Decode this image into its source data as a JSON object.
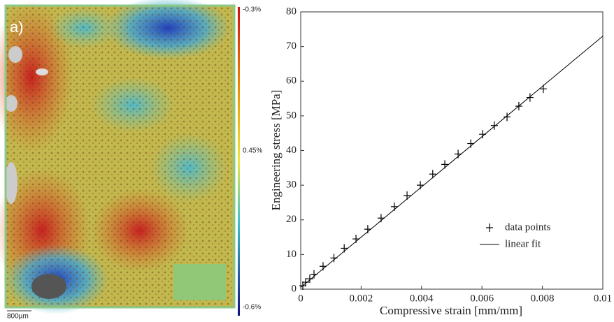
{
  "panel_a": {
    "label": "a)",
    "scale_bar": "800µm",
    "colorbar_labels": [
      "-0.3%",
      "0.45%",
      "-0.6%"
    ]
  },
  "chart_data": {
    "type": "scatter",
    "x_label": "Compressive strain [mm/mm]",
    "y_label": "Engineering stress [MPa]",
    "xlim": [
      0,
      0.01
    ],
    "xticks": [
      0,
      0.002,
      0.004,
      0.006,
      0.008,
      0.01
    ],
    "ylim": [
      0,
      80
    ],
    "yticks": [
      0,
      10,
      20,
      30,
      40,
      50,
      60,
      70,
      80
    ],
    "legend": "lower right",
    "series": [
      {
        "name": "data points",
        "color": "#000000",
        "marker": "+",
        "x": [
          7e-05,
          0.00016,
          0.0003,
          0.00044,
          0.00074,
          0.0011,
          0.00144,
          0.00183,
          0.00222,
          0.00266,
          0.0031,
          0.00352,
          0.00396,
          0.00437,
          0.00477,
          0.00521,
          0.00563,
          0.00602,
          0.00641,
          0.00683,
          0.00722,
          0.00759,
          0.00803
        ],
        "values": [
          1,
          2,
          3,
          4.3,
          6.6,
          9,
          11.8,
          14.5,
          17.3,
          20.5,
          23.8,
          27,
          30,
          33.2,
          36,
          39,
          42,
          44.7,
          47.2,
          49.7,
          52.8,
          55.3,
          57.8
        ]
      },
      {
        "name": "linear fit",
        "color": "#000000",
        "marker": "line",
        "x": [
          0,
          0.01
        ],
        "values": [
          0.5,
          73
        ]
      }
    ]
  }
}
